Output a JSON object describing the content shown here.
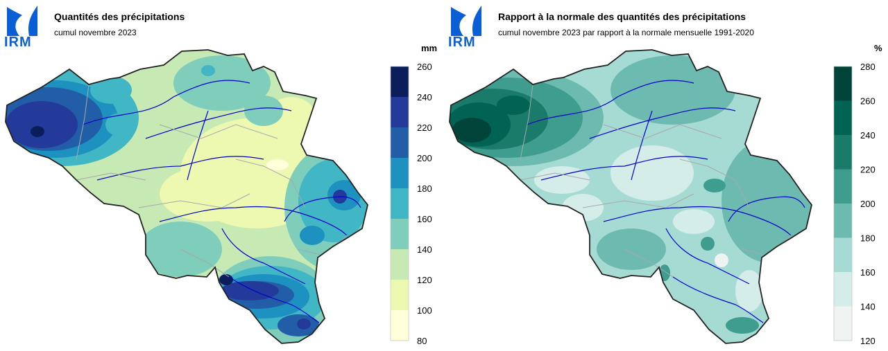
{
  "logo": {
    "text": "IRM"
  },
  "left": {
    "title": "Quantités des précipitations",
    "subtitle": "cumul novembre 2023",
    "legend": {
      "unit": "mm",
      "ticks": [
        "260",
        "240",
        "220",
        "200",
        "180",
        "160",
        "140",
        "120",
        "100",
        "80"
      ],
      "colors": [
        "#0b1e5b",
        "#243a9a",
        "#225ea8",
        "#1d91c0",
        "#41b6c4",
        "#7fcdbb",
        "#c7e9b4",
        "#edf8b1",
        "#ffffd9"
      ]
    }
  },
  "right": {
    "title": "Rapport à la normale des quantités des précipitations",
    "subtitle": "cumul novembre 2023 par rapport à la normale mensuelle 1991-2020",
    "legend": {
      "unit": "%",
      "ticks": [
        "280",
        "260",
        "240",
        "220",
        "200",
        "180",
        "160",
        "140",
        "120"
      ],
      "colors": [
        "#00443a",
        "#006354",
        "#1b7b6b",
        "#3f9d8f",
        "#6dbbb0",
        "#a6dbd3",
        "#d4ede9",
        "#eff3f1"
      ]
    }
  }
}
